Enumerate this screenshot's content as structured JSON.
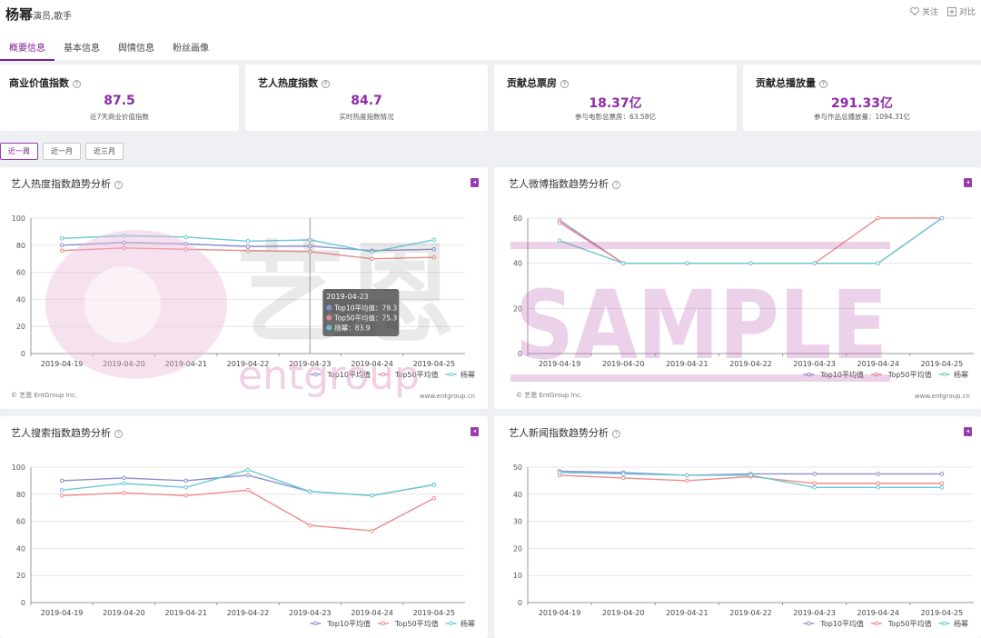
{
  "header": {
    "name": "杨幂",
    "roles": "演员,歌手",
    "follow": "关注",
    "compare": "对比"
  },
  "tabs": [
    "概要信息",
    "基本信息",
    "舆情信息",
    "粉丝画像"
  ],
  "cards": [
    {
      "title": "商业价值指数",
      "value": "87.5",
      "sub": "近7天商业价值指数"
    },
    {
      "title": "艺人热度指数",
      "value": "84.7",
      "sub": "实时热度指数情况"
    },
    {
      "title": "贡献总票房",
      "value": "18.37亿",
      "sub": "参与电影总票房：63.58亿"
    },
    {
      "title": "贡献总播放量",
      "value": "291.33亿",
      "sub": "参与作品总播放量：1094.31亿"
    }
  ],
  "ranges": [
    "近一周",
    "近一月",
    "近三月"
  ],
  "footer": {
    "copyright": "© 艺恩 EntGroup Inc.",
    "site": "www.entgroup.cn"
  },
  "watermark": {
    "brand_cn": "艺恩",
    "brand_en": "entgroup",
    "sample": "SAMPLE"
  },
  "colors": {
    "accent": "#8e2aa6",
    "top10": "#8a8fd0",
    "top50": "#f08a8a",
    "artist": "#6cc8d6"
  },
  "tooltip": {
    "date": "2019-04-23",
    "rows": [
      "Top10平均值：79.3",
      "Top50平均值：75.3",
      "杨幂：83.9"
    ]
  },
  "chart_data": [
    {
      "type": "line",
      "title": "艺人热度指数趋势分析",
      "x": [
        "2019-04-19",
        "2019-04-20",
        "2019-04-21",
        "2019-04-22",
        "2019-04-23",
        "2019-04-24",
        "2019-04-25"
      ],
      "ylim": [
        0,
        100
      ],
      "yticks": [
        0,
        20,
        40,
        60,
        80,
        100
      ],
      "series": [
        {
          "name": "Top10平均值",
          "values": [
            80,
            82,
            81,
            79,
            79.3,
            76,
            77
          ]
        },
        {
          "name": "Top50平均值",
          "values": [
            76,
            78,
            77,
            76,
            75.3,
            70,
            71
          ]
        },
        {
          "name": "杨幂",
          "values": [
            85,
            87,
            86,
            83,
            83.9,
            75,
            84
          ]
        }
      ]
    },
    {
      "type": "line",
      "title": "艺人微博指数趋势分析",
      "x": [
        "2019-04-19",
        "2019-04-20",
        "2019-04-21",
        "2019-04-22",
        "2019-04-23",
        "2019-04-24",
        "2019-04-25"
      ],
      "ylim": [
        0,
        60
      ],
      "yticks": [
        0,
        20,
        40,
        60
      ],
      "series": [
        {
          "name": "Top10平均值",
          "values": [
            59,
            40,
            40,
            40,
            40,
            40,
            60
          ]
        },
        {
          "name": "Top50平均值",
          "values": [
            58,
            40,
            40,
            40,
            40,
            60,
            60
          ]
        },
        {
          "name": "杨幂",
          "values": [
            50,
            40,
            40,
            40,
            40,
            40,
            60
          ]
        }
      ]
    },
    {
      "type": "line",
      "title": "艺人搜索指数趋势分析",
      "x": [
        "2019-04-19",
        "2019-04-20",
        "2019-04-21",
        "2019-04-22",
        "2019-04-23",
        "2019-04-24",
        "2019-04-25"
      ],
      "ylim": [
        0,
        100
      ],
      "yticks": [
        0,
        20,
        40,
        60,
        80,
        100
      ],
      "series": [
        {
          "name": "Top10平均值",
          "values": [
            90,
            92,
            90,
            94,
            82,
            79,
            87
          ]
        },
        {
          "name": "Top50平均值",
          "values": [
            79,
            81,
            79,
            83,
            57,
            53,
            77
          ]
        },
        {
          "name": "杨幂",
          "values": [
            83,
            88,
            85,
            98,
            82,
            79,
            87
          ]
        }
      ]
    },
    {
      "type": "line",
      "title": "艺人新闻指数趋势分析",
      "x": [
        "2019-04-19",
        "2019-04-20",
        "2019-04-21",
        "2019-04-22",
        "2019-04-23",
        "2019-04-24",
        "2019-04-25"
      ],
      "ylim": [
        0,
        50
      ],
      "yticks": [
        0,
        10,
        20,
        30,
        40,
        50
      ],
      "series": [
        {
          "name": "Top10平均值",
          "values": [
            48.5,
            48,
            47,
            47.5,
            47.5,
            47.5,
            47.5
          ]
        },
        {
          "name": "Top50平均值",
          "values": [
            47,
            46,
            45,
            46.5,
            44,
            44,
            44
          ]
        },
        {
          "name": "杨幂",
          "values": [
            48,
            47.5,
            47,
            47,
            42.5,
            42.5,
            42.5
          ]
        }
      ]
    }
  ]
}
